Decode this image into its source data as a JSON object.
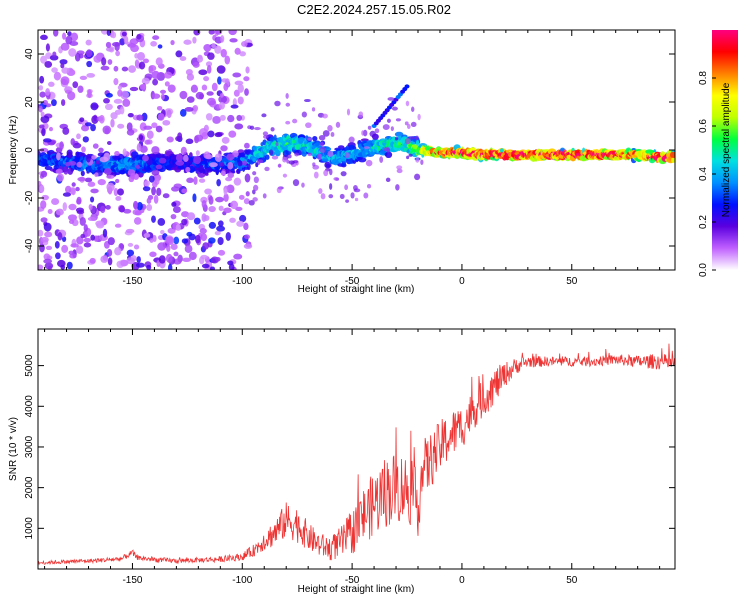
{
  "title": "C2E2.2024.257.15.05.R02",
  "chart_data": [
    {
      "type": "heatmap",
      "xlabel": "Height of straight line (km)",
      "ylabel": "Frequency (Hz)",
      "xlim": [
        -193,
        97
      ],
      "ylim": [
        -50,
        50
      ],
      "xticks": [
        -150,
        -100,
        -50,
        0,
        50
      ],
      "yticks": [
        -40,
        -20,
        0,
        20,
        40
      ],
      "colorbar": {
        "label": "Normalized spectral amplitude",
        "range": [
          0,
          1
        ],
        "ticks": [
          "0.0",
          "0.2",
          "0.4",
          "0.6",
          "0.8"
        ],
        "colors": [
          "#ffffff",
          "#c060ff",
          "#5a00e0",
          "#0010ff",
          "#0090ff",
          "#00e0e0",
          "#00ff40",
          "#c0ff00",
          "#ffff00",
          "#ff8000",
          "#ff0000",
          "#ff0080"
        ]
      },
      "ridge": {
        "x": [
          -190,
          -170,
          -150,
          -130,
          -115,
          -100,
          -90,
          -80,
          -70,
          -60,
          -50,
          -40,
          -30,
          -25,
          -20,
          -10,
          0,
          10,
          30,
          50,
          70,
          80,
          90,
          96
        ],
        "y": [
          -4,
          -6,
          -6,
          -5,
          -6,
          -5,
          0,
          3,
          2,
          -3,
          -2,
          1,
          3,
          2,
          0,
          -1,
          -1,
          -2,
          -2,
          -2,
          -2,
          -2,
          -3,
          -3
        ],
        "amplitude": [
          0.25,
          0.3,
          0.32,
          0.2,
          0.25,
          0.3,
          0.4,
          0.45,
          0.4,
          0.35,
          0.35,
          0.4,
          0.45,
          0.45,
          0.6,
          0.8,
          0.9,
          0.95,
          0.95,
          0.95,
          0.9,
          0.75,
          0.9,
          0.9
        ]
      }
    },
    {
      "type": "line",
      "xlabel": "Height of straight line (km)",
      "ylabel": "SNR (10 * v/v)",
      "xlim": [
        -193,
        97
      ],
      "ylim": [
        0,
        5900
      ],
      "xticks": [
        -150,
        -100,
        -50,
        0,
        50
      ],
      "yticks": [
        1000,
        2000,
        3000,
        4000,
        5000
      ],
      "color": "#ee3333",
      "series": [
        {
          "x": [
            -193,
            -180,
            -170,
            -160,
            -155,
            -150,
            -148,
            -140,
            -130,
            -120,
            -110,
            -100,
            -95,
            -90,
            -85,
            -80,
            -75,
            -70,
            -65,
            -60,
            -55,
            -50,
            -45,
            -40,
            -35,
            -30,
            -25,
            -20,
            -18,
            -15,
            -10,
            -5,
            0,
            5,
            10,
            15,
            20,
            25,
            30,
            40,
            50,
            60,
            70,
            80,
            90,
            97
          ],
          "y": [
            150,
            180,
            200,
            230,
            250,
            400,
            280,
            230,
            200,
            220,
            240,
            300,
            450,
            700,
            900,
            1200,
            1100,
            800,
            600,
            500,
            650,
            900,
            1300,
            1600,
            1900,
            2000,
            2000,
            1600,
            2400,
            2600,
            3000,
            3300,
            3500,
            3900,
            4200,
            4500,
            4800,
            5000,
            5100,
            5100,
            5100,
            5100,
            5150,
            5100,
            5100,
            5050
          ],
          "noise": [
            40,
            50,
            50,
            60,
            60,
            80,
            60,
            60,
            60,
            60,
            70,
            90,
            150,
            250,
            350,
            450,
            450,
            350,
            300,
            300,
            400,
            550,
            700,
            800,
            900,
            900,
            850,
            800,
            800,
            700,
            650,
            600,
            550,
            500,
            450,
            450,
            300,
            200,
            150,
            120,
            120,
            120,
            130,
            150,
            200,
            200
          ]
        }
      ]
    }
  ]
}
